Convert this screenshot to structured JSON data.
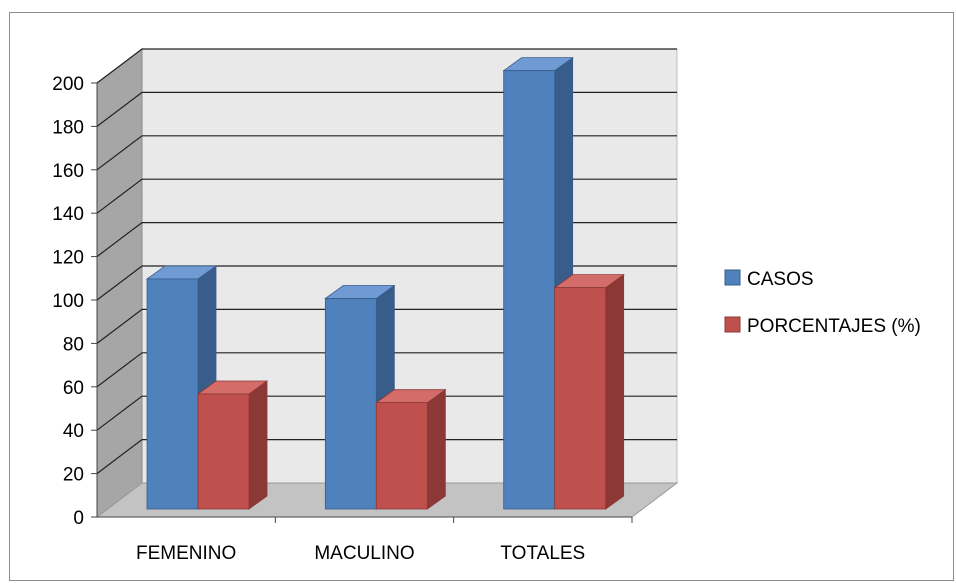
{
  "chart_data": {
    "type": "bar",
    "style": "3d-clustered-column",
    "categories": [
      "FEMENINO",
      "MACULINO",
      "TOTALES"
    ],
    "series": [
      {
        "name": "CASOS",
        "values": [
          106,
          97,
          202
        ],
        "color": "#4f81bd",
        "color_dark": "#385d8a",
        "color_top": "#6f9ad4"
      },
      {
        "name": "PORCENTAJES (%)",
        "values": [
          53,
          49,
          102
        ],
        "color": "#c0504d",
        "color_dark": "#8c3836",
        "color_top": "#d46d6a"
      }
    ],
    "yticks": [
      0,
      20,
      40,
      60,
      80,
      100,
      120,
      140,
      160,
      180,
      200
    ],
    "ylim": [
      0,
      200
    ],
    "grid": true,
    "legend_position": "right",
    "title": "",
    "xlabel": "",
    "ylabel": ""
  }
}
